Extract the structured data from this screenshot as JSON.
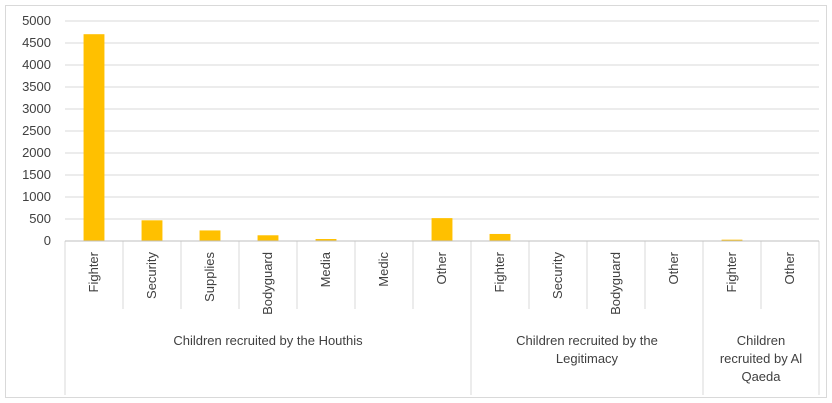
{
  "chart_data": {
    "type": "bar",
    "color": "#FFC000",
    "ylim": [
      0,
      5000
    ],
    "yticks": [
      0,
      500,
      1000,
      1500,
      2000,
      2500,
      3000,
      3500,
      4000,
      4500,
      5000
    ],
    "grid": true,
    "groups": [
      {
        "label_lines": [
          "Children recruited by the Houthis"
        ],
        "categories": [
          "Fighter",
          "Security",
          "Supplies",
          "Bodyguard",
          "Media",
          "Medic",
          "Other"
        ],
        "values": [
          4700,
          470,
          240,
          130,
          45,
          5,
          520
        ]
      },
      {
        "label_lines": [
          "Children recruited by the",
          "Legitimacy"
        ],
        "categories": [
          "Fighter",
          "Security",
          "Bodyguard",
          "Other"
        ],
        "values": [
          160,
          0,
          0,
          0
        ]
      },
      {
        "label_lines": [
          "Children",
          "recruited by Al",
          "Qaeda"
        ],
        "categories": [
          "Fighter",
          "Other"
        ],
        "values": [
          30,
          0
        ]
      }
    ]
  }
}
